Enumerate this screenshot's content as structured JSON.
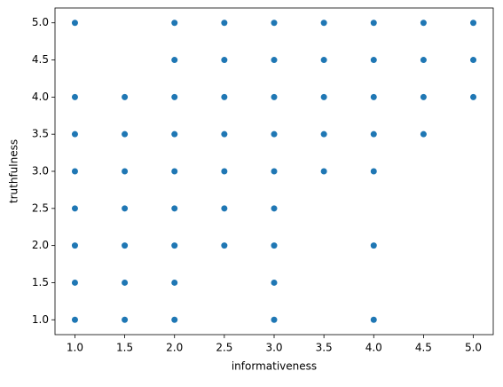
{
  "chart_data": {
    "type": "scatter",
    "xlabel": "informativeness",
    "ylabel": "truthfulness",
    "color": "#1f77b4",
    "x": [
      1,
      1,
      1,
      1,
      1,
      1,
      1,
      1,
      1.5,
      1.5,
      1.5,
      1.5,
      1.5,
      1.5,
      1.5,
      2,
      2,
      2,
      2,
      2,
      2,
      2,
      2,
      2,
      2.5,
      2.5,
      2.5,
      2.5,
      2.5,
      2.5,
      2.5,
      3,
      3,
      3,
      3,
      3,
      3,
      3,
      3,
      3,
      3.5,
      3.5,
      3.5,
      3.5,
      3.5,
      4,
      4,
      4,
      4,
      4,
      4,
      4,
      4.5,
      4.5,
      4.5,
      4.5,
      5,
      5,
      5
    ],
    "values": [
      1,
      1.5,
      2,
      2.5,
      3,
      3.5,
      4,
      5,
      1,
      1.5,
      2,
      2.5,
      3,
      3.5,
      4,
      1,
      1.5,
      2,
      2.5,
      3,
      3.5,
      4,
      4.5,
      5,
      2,
      2.5,
      3,
      3.5,
      4,
      4.5,
      5,
      1,
      1.5,
      2,
      2.5,
      3,
      3.5,
      4,
      4.5,
      5,
      3,
      3.5,
      4,
      4.5,
      5,
      1,
      2,
      3,
      3.5,
      4,
      4.5,
      5,
      3.5,
      4,
      4.5,
      5,
      4,
      4.5,
      5
    ],
    "xlim": [
      0.8,
      5.2
    ],
    "ylim": [
      0.8,
      5.2
    ],
    "xticks": [
      {
        "value": 1,
        "label": "1.0"
      },
      1.5,
      {
        "value": 2,
        "label": "2.0"
      },
      2.5,
      {
        "value": 3,
        "label": "3.0"
      },
      3.5,
      {
        "value": 4,
        "label": "4.0"
      },
      4.5,
      {
        "value": 5,
        "label": "5.0"
      }
    ],
    "yticks": [
      {
        "value": 1,
        "label": "1.0"
      },
      1.5,
      {
        "value": 2,
        "label": "2.0"
      },
      2.5,
      {
        "value": 3,
        "label": "3.0"
      },
      3.5,
      {
        "value": 4,
        "label": "4.0"
      },
      4.5,
      {
        "value": 5,
        "label": "5.0"
      }
    ]
  }
}
